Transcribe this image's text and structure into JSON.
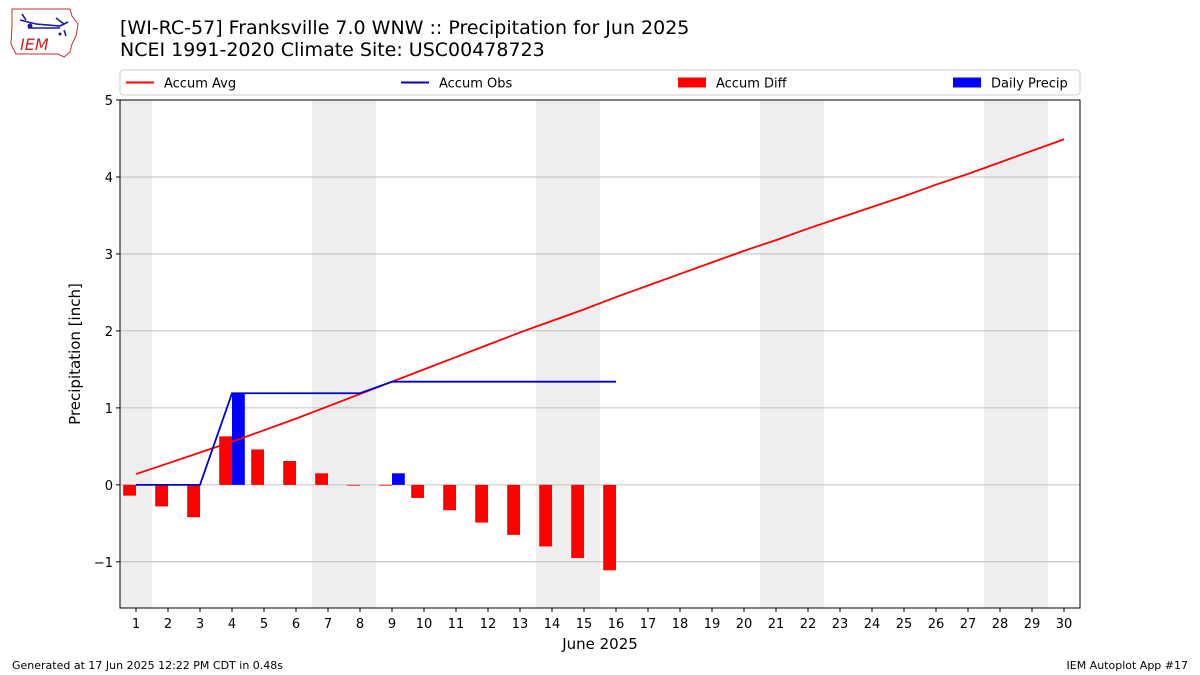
{
  "header": {
    "logo_text": "IEM",
    "title_line1": "[WI-RC-57] Franksville 7.0 WNW :: Precipitation for Jun 2025",
    "title_line2": "NCEI 1991-2020 Climate Site: USC00478723"
  },
  "footer": {
    "generated": "Generated at 17 Jun 2025 12:22 PM CDT in 0.48s",
    "app": "IEM Autoplot App #17"
  },
  "colors": {
    "accum_avg": "#ff0000",
    "accum_obs": "#0000cc",
    "accum_diff": "#ff0000",
    "daily_precip": "#0000ff",
    "weekend_band": "#eeeeee",
    "grid": "#b0b0b0"
  },
  "chart_data": {
    "type": "bar",
    "xlabel": "June 2025",
    "ylabel": "Precipitation [inch]",
    "xlim": [
      0.5,
      30.5
    ],
    "ylim": [
      -1.6,
      5
    ],
    "y_ticks": [
      -1,
      0,
      1,
      2,
      3,
      4,
      5
    ],
    "y_tick_labels": [
      "−1",
      "0",
      "1",
      "2",
      "3",
      "4",
      "5"
    ],
    "x": [
      1,
      2,
      3,
      4,
      5,
      6,
      7,
      8,
      9,
      10,
      11,
      12,
      13,
      14,
      15,
      16,
      17,
      18,
      19,
      20,
      21,
      22,
      23,
      24,
      25,
      26,
      27,
      28,
      29,
      30
    ],
    "x_tick_labels": [
      "1",
      "2",
      "3",
      "4",
      "5",
      "6",
      "7",
      "8",
      "9",
      "10",
      "11",
      "12",
      "13",
      "14",
      "15",
      "16",
      "17",
      "18",
      "19",
      "20",
      "21",
      "22",
      "23",
      "24",
      "25",
      "26",
      "27",
      "28",
      "29",
      "30"
    ],
    "grid": "horizontal",
    "legend_position": "top",
    "weekend_bands": [
      [
        0.5,
        1.5
      ],
      [
        6.5,
        8.5
      ],
      [
        13.5,
        15.5
      ],
      [
        20.5,
        22.5
      ],
      [
        27.5,
        29.5
      ]
    ],
    "series": [
      {
        "name": "Accum Avg",
        "kind": "line",
        "x": [
          1,
          2,
          3,
          4,
          5,
          6,
          7,
          8,
          9,
          10,
          11,
          12,
          13,
          14,
          15,
          16,
          17,
          18,
          19,
          20,
          21,
          22,
          23,
          24,
          25,
          26,
          27,
          28,
          29,
          30
        ],
        "values": [
          0.14,
          0.28,
          0.42,
          0.56,
          0.71,
          0.86,
          1.02,
          1.18,
          1.34,
          1.5,
          1.66,
          1.82,
          1.98,
          2.13,
          2.28,
          2.44,
          2.59,
          2.74,
          2.89,
          3.04,
          3.18,
          3.33,
          3.47,
          3.61,
          3.75,
          3.9,
          4.04,
          4.19,
          4.34,
          4.49
        ]
      },
      {
        "name": "Accum Obs",
        "kind": "line",
        "x": [
          1,
          2,
          3,
          4,
          5,
          6,
          7,
          8,
          9,
          10,
          11,
          12,
          13,
          14,
          15,
          16
        ],
        "values": [
          0,
          0,
          0,
          1.19,
          1.19,
          1.19,
          1.19,
          1.19,
          1.34,
          1.34,
          1.34,
          1.34,
          1.34,
          1.34,
          1.34,
          1.34
        ]
      },
      {
        "name": "Accum Diff",
        "kind": "bar",
        "x": [
          1,
          2,
          3,
          4,
          5,
          6,
          7,
          8,
          9,
          10,
          11,
          12,
          13,
          14,
          15,
          16
        ],
        "values": [
          -0.14,
          -0.28,
          -0.42,
          0.63,
          0.46,
          0.31,
          0.15,
          0.0,
          -0.01,
          -0.17,
          -0.33,
          -0.49,
          -0.65,
          -0.8,
          -0.95,
          -1.11
        ]
      },
      {
        "name": "Daily Precip",
        "kind": "bar",
        "x": [
          4,
          9
        ],
        "values": [
          1.19,
          0.15
        ]
      }
    ]
  }
}
